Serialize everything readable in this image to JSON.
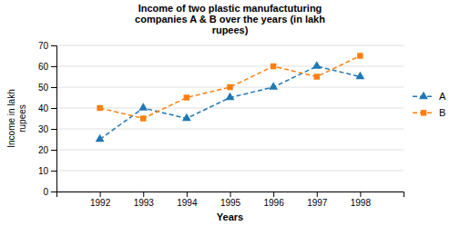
{
  "chart_data": {
    "type": "line",
    "title": "Income of two plastic manufactuturing\ncompanies A & B over the years (in lakh\nrupees)",
    "x_label": "Years",
    "y_label": "Income in lakh\nrupees",
    "x": [
      1992,
      1993,
      1994,
      1995,
      1996,
      1997,
      1998
    ],
    "xlim": [
      1991,
      1999
    ],
    "xticks": [
      1992,
      1993,
      1994,
      1995,
      1996,
      1997,
      1998
    ],
    "ylim": [
      0,
      70
    ],
    "yticks": [
      0,
      10,
      20,
      30,
      40,
      50,
      60,
      70
    ],
    "grid": true,
    "legend": "right",
    "series": [
      {
        "name": "A",
        "values": [
          25,
          40,
          35,
          45,
          50,
          60,
          55
        ],
        "marker": "triangle",
        "line_style": "dashed"
      },
      {
        "name": "B",
        "values": [
          40,
          35,
          45,
          50,
          60,
          55,
          65
        ],
        "marker": "square",
        "line_style": "dashed"
      }
    ]
  }
}
